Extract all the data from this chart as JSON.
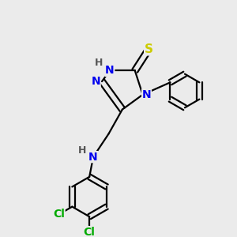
{
  "background_color": "#ebebeb",
  "atom_colors": {
    "C": "#000000",
    "N": "#0000ee",
    "S": "#cccc00",
    "Cl": "#00aa00",
    "H": "#555555"
  },
  "bond_color": "#000000",
  "bond_width": 1.6,
  "figsize": [
    3.0,
    3.0
  ],
  "dpi": 100
}
